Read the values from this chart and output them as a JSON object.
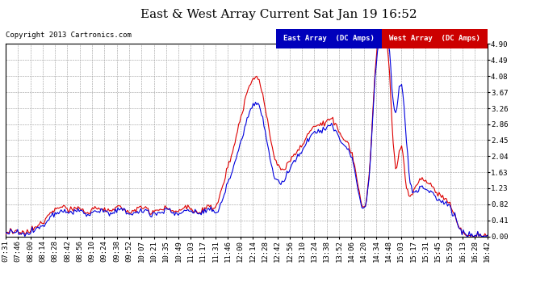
{
  "title": "East & West Array Current Sat Jan 19 16:52",
  "copyright": "Copyright 2013 Cartronics.com",
  "legend_east": "East Array  (DC Amps)",
  "legend_west": "West Array  (DC Amps)",
  "east_color": "#0000dd",
  "west_color": "#dd0000",
  "east_legend_bg": "#0000bb",
  "west_legend_bg": "#cc0000",
  "background_color": "#ffffff",
  "plot_bg_color": "#ffffff",
  "grid_color": "#999999",
  "yticks": [
    0.0,
    0.41,
    0.82,
    1.23,
    1.63,
    2.04,
    2.45,
    2.86,
    3.26,
    3.67,
    4.08,
    4.49,
    4.9
  ],
  "ylim": [
    0.0,
    4.9
  ],
  "xtick_labels": [
    "07:31",
    "07:46",
    "08:00",
    "08:14",
    "08:28",
    "08:42",
    "08:56",
    "09:10",
    "09:24",
    "09:38",
    "09:52",
    "10:07",
    "10:21",
    "10:35",
    "10:49",
    "11:03",
    "11:17",
    "11:31",
    "11:46",
    "12:00",
    "12:14",
    "12:28",
    "12:42",
    "12:56",
    "13:10",
    "13:24",
    "13:38",
    "13:52",
    "14:06",
    "14:20",
    "14:34",
    "14:48",
    "15:03",
    "15:17",
    "15:31",
    "15:45",
    "15:59",
    "16:13",
    "16:28",
    "16:42"
  ],
  "title_fontsize": 11,
  "axis_fontsize": 6.5,
  "copyright_fontsize": 6.5,
  "legend_fontsize": 6.5,
  "line_width": 0.8
}
